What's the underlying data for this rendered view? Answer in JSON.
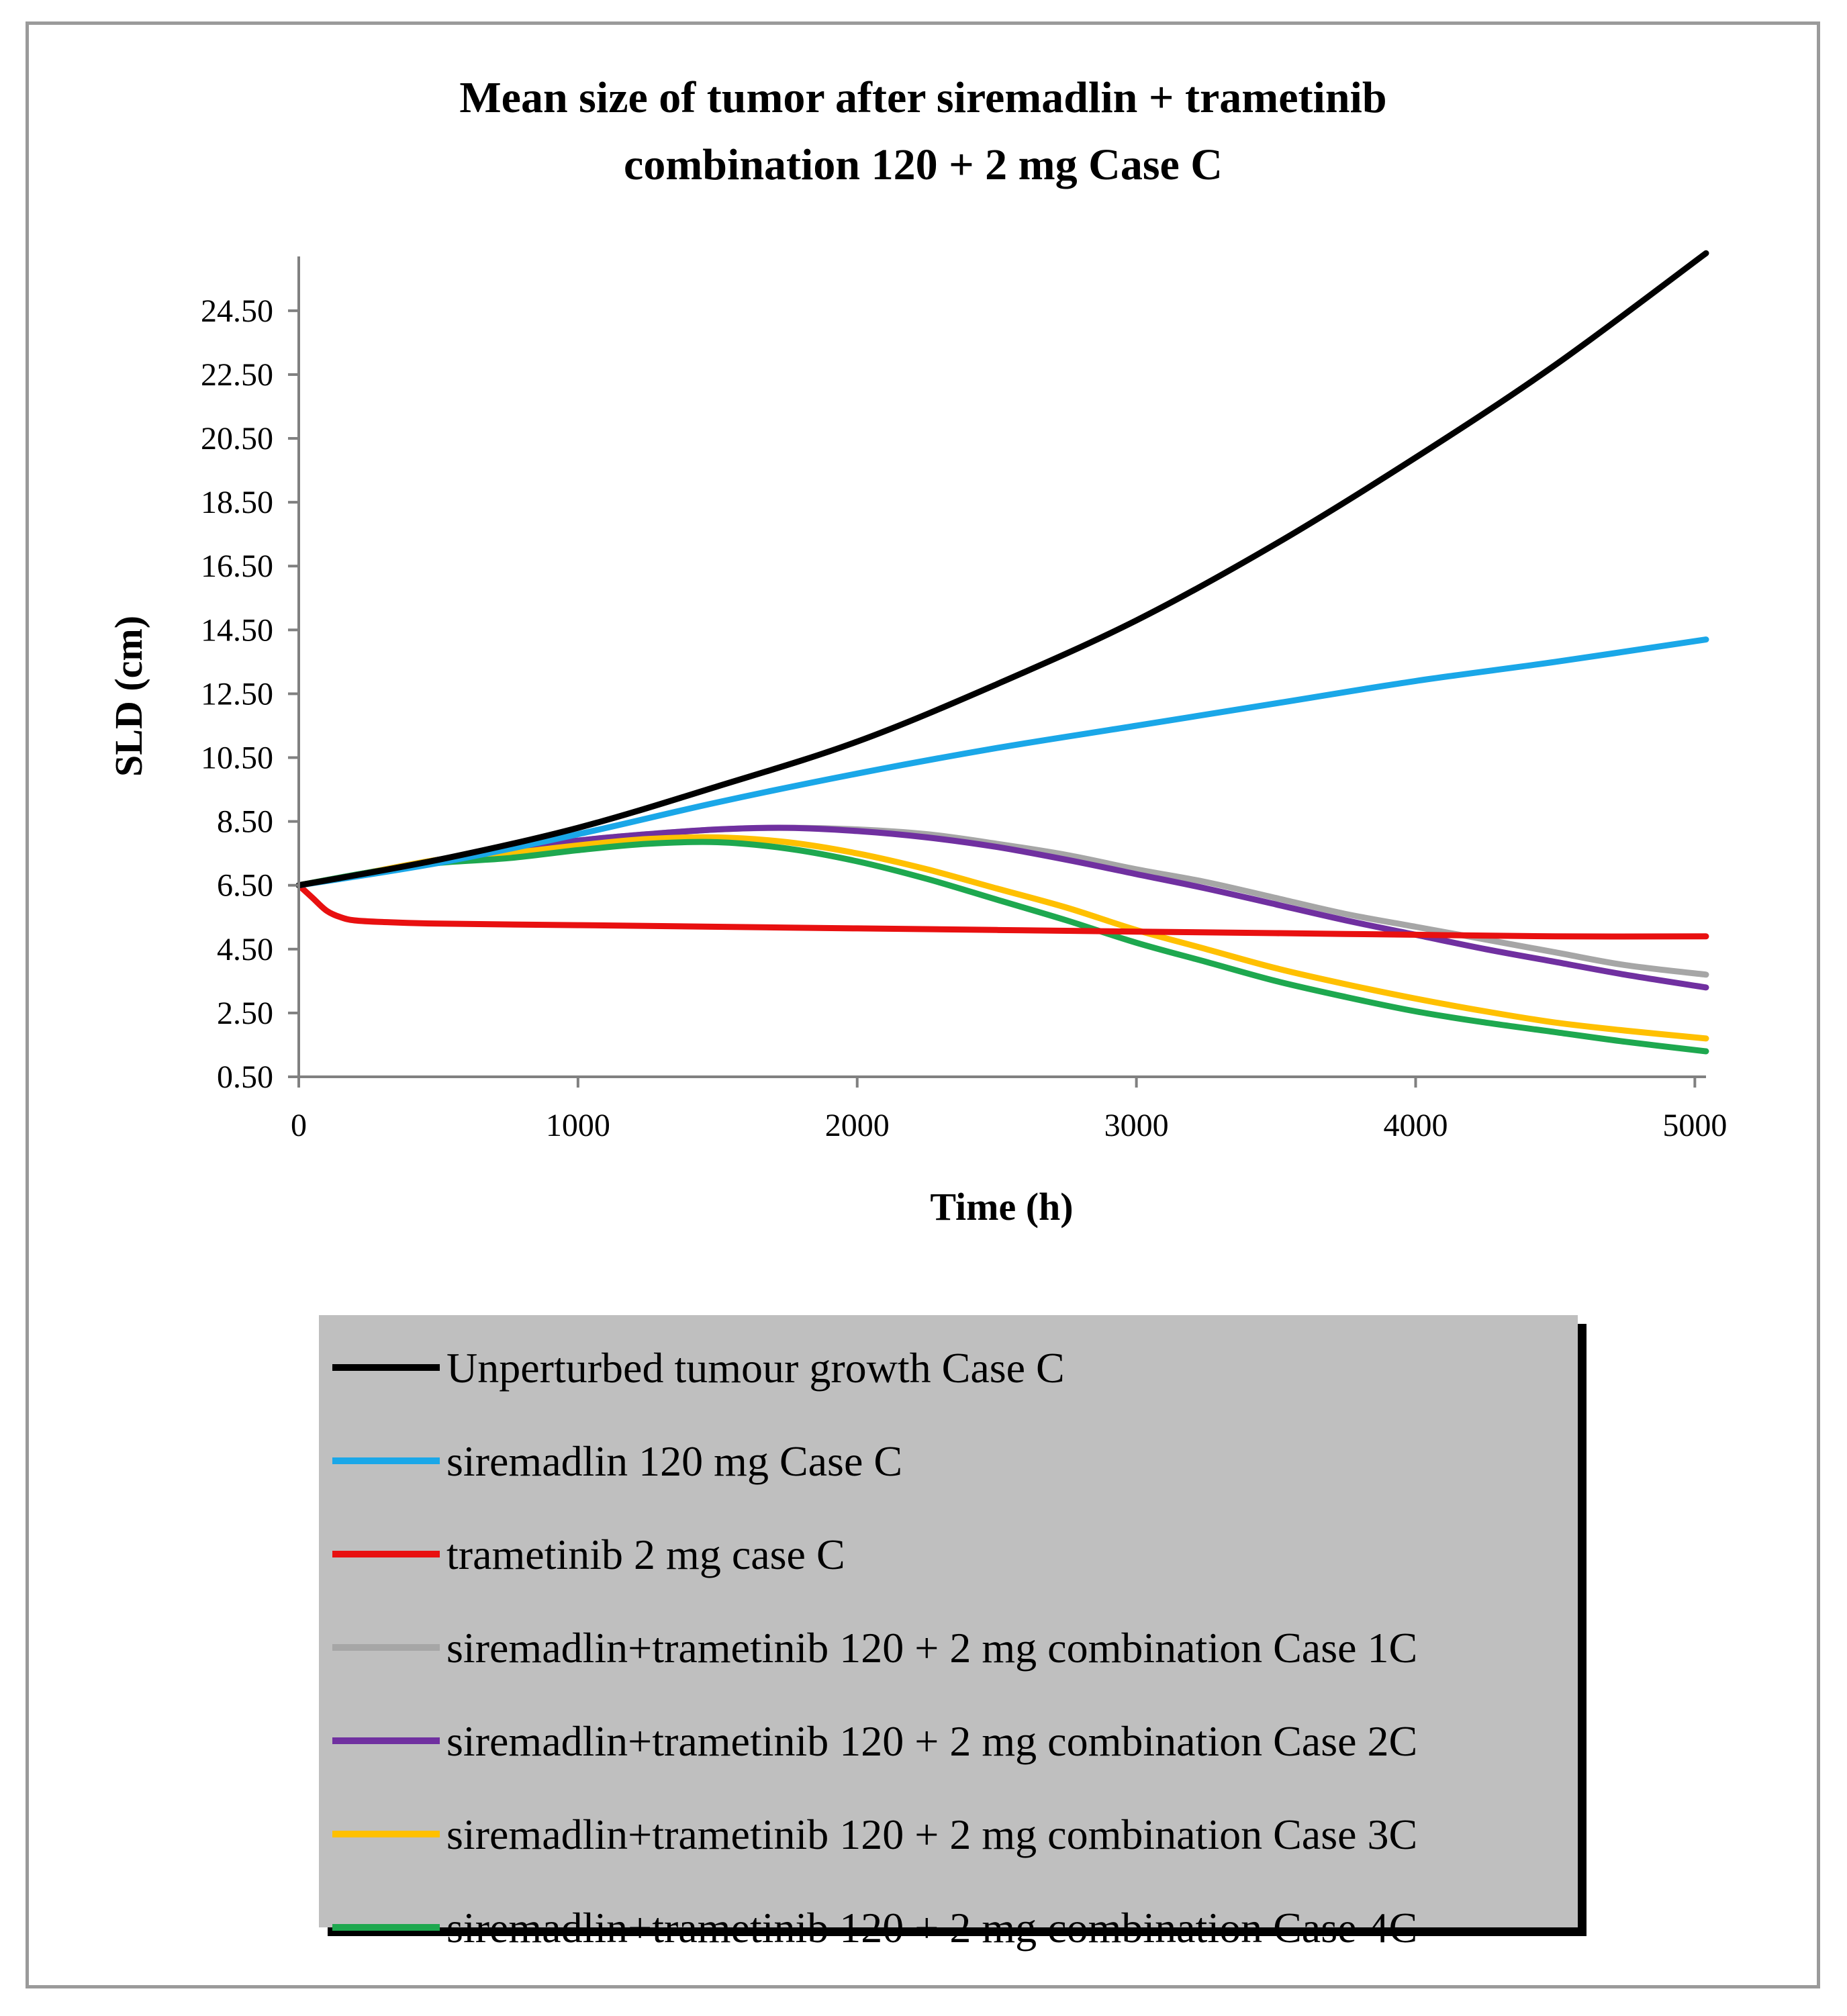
{
  "chart_data": {
    "type": "line",
    "title_lines": [
      "Mean size of tumor after siremadlin + trametinib",
      "combination 120 + 2 mg Case C"
    ],
    "xlabel": "Time (h)",
    "ylabel": "SLD (cm)",
    "xlim": [
      0,
      5040
    ],
    "ylim": [
      0.5,
      26.2
    ],
    "x_ticks": [
      0,
      1000,
      2000,
      3000,
      4000,
      5000
    ],
    "x_tick_labels": [
      "0",
      "1000",
      "2000",
      "3000",
      "4000",
      "5000"
    ],
    "y_ticks": [
      0.5,
      2.5,
      4.5,
      6.5,
      8.5,
      10.5,
      12.5,
      14.5,
      16.5,
      18.5,
      20.5,
      22.5,
      24.5
    ],
    "y_tick_labels": [
      "0.50",
      "2.50",
      "4.50",
      "6.50",
      "8.50",
      "10.50",
      "12.50",
      "14.50",
      "16.50",
      "18.50",
      "20.50",
      "22.50",
      "24.50"
    ],
    "legend_position": "bottom",
    "series": [
      {
        "name": "Unperturbed tumour growth Case C",
        "color": "#000000",
        "x": [
          0,
          500,
          1000,
          1500,
          2000,
          2500,
          3000,
          3500,
          4000,
          4500,
          5040
        ],
        "y": [
          6.5,
          7.3,
          8.3,
          9.6,
          11.0,
          12.8,
          14.8,
          17.2,
          19.9,
          22.8,
          26.3
        ]
      },
      {
        "name": "siremadlin 120 mg Case C",
        "color": "#1aa7e8",
        "x": [
          0,
          500,
          1000,
          1500,
          2000,
          2500,
          3000,
          3500,
          4000,
          4500,
          5040
        ],
        "y": [
          6.5,
          7.2,
          8.1,
          9.1,
          10.0,
          10.8,
          11.5,
          12.2,
          12.9,
          13.5,
          14.2
        ]
      },
      {
        "name": "trametinib 2 mg case C",
        "color": "#e81010",
        "x": [
          0,
          50,
          100,
          150,
          200,
          300,
          500,
          1000,
          1500,
          2000,
          2500,
          3000,
          3500,
          4000,
          4500,
          5040
        ],
        "y": [
          6.5,
          6.1,
          5.7,
          5.5,
          5.4,
          5.35,
          5.3,
          5.25,
          5.2,
          5.15,
          5.1,
          5.05,
          5.0,
          4.95,
          4.9,
          4.9
        ]
      },
      {
        "name": "siremadlin+trametinib 120 + 2 mg combination Case 1C",
        "color": "#a6a6a6",
        "x": [
          0,
          250,
          500,
          750,
          1000,
          1250,
          1500,
          1750,
          2000,
          2250,
          2500,
          2750,
          3000,
          3250,
          3500,
          3750,
          4000,
          4250,
          4500,
          4750,
          5040
        ],
        "y": [
          6.5,
          6.9,
          7.3,
          7.6,
          7.9,
          8.1,
          8.25,
          8.3,
          8.25,
          8.1,
          7.8,
          7.45,
          7.0,
          6.6,
          6.1,
          5.6,
          5.2,
          4.8,
          4.4,
          4.0,
          3.7
        ]
      },
      {
        "name": "siremadlin+trametinib 120 + 2 mg combination Case 2C",
        "color": "#7030a0",
        "x": [
          0,
          250,
          500,
          750,
          1000,
          1250,
          1500,
          1750,
          2000,
          2250,
          2500,
          2750,
          3000,
          3250,
          3500,
          3750,
          4000,
          4250,
          4500,
          4750,
          5040
        ],
        "y": [
          6.5,
          6.9,
          7.3,
          7.6,
          7.9,
          8.1,
          8.25,
          8.3,
          8.2,
          8.0,
          7.7,
          7.3,
          6.85,
          6.4,
          5.9,
          5.4,
          4.95,
          4.5,
          4.1,
          3.7,
          3.3
        ]
      },
      {
        "name": "siremadlin+trametinib 120 + 2 mg combination Case 3C",
        "color": "#ffc000",
        "x": [
          0,
          250,
          500,
          750,
          1000,
          1250,
          1500,
          1750,
          2000,
          2250,
          2500,
          2750,
          3000,
          3250,
          3500,
          3750,
          4000,
          4250,
          4500,
          4750,
          5040
        ],
        "y": [
          6.5,
          6.9,
          7.3,
          7.5,
          7.75,
          7.95,
          8.0,
          7.85,
          7.5,
          7.0,
          6.4,
          5.8,
          5.1,
          4.5,
          3.9,
          3.4,
          2.95,
          2.55,
          2.2,
          1.95,
          1.7
        ]
      },
      {
        "name": "siremadlin+trametinib 120 + 2 mg combination Case 4C",
        "color": "#1ea84f",
        "x": [
          0,
          250,
          500,
          750,
          1000,
          1250,
          1500,
          1750,
          2000,
          2250,
          2500,
          2750,
          3000,
          3250,
          3500,
          3750,
          4000,
          4250,
          4500,
          4750,
          5040
        ],
        "y": [
          6.5,
          6.9,
          7.2,
          7.35,
          7.6,
          7.8,
          7.85,
          7.65,
          7.25,
          6.7,
          6.05,
          5.4,
          4.7,
          4.1,
          3.5,
          3.0,
          2.55,
          2.2,
          1.9,
          1.6,
          1.3
        ]
      }
    ]
  }
}
